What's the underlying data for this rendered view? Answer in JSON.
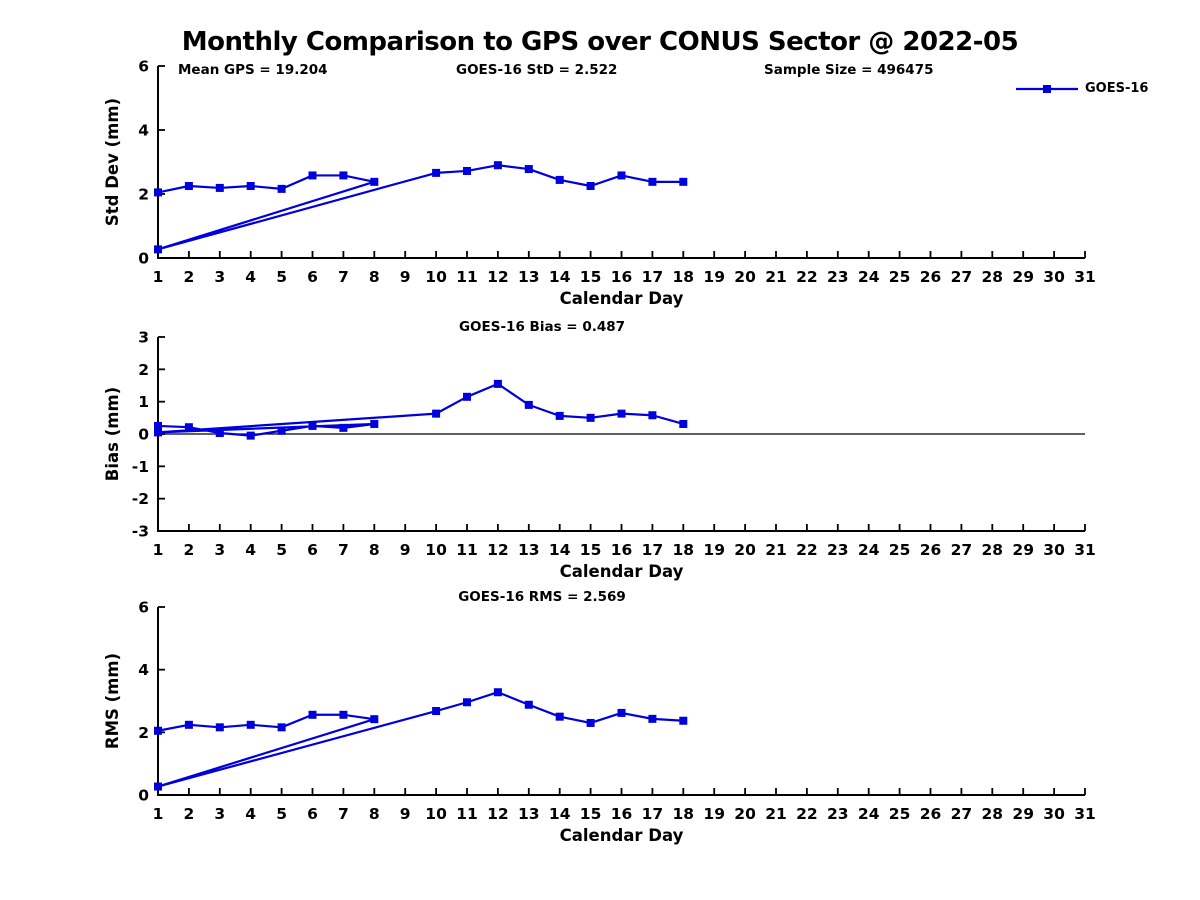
{
  "figure": {
    "title": "Monthly Comparison to GPS over CONUS Sector @ 2022-05",
    "annotations": {
      "mean_gps": "Mean GPS = 19.204",
      "goes16_std": "GOES-16 StD = 2.522",
      "sample_size": "Sample Size = 496475"
    },
    "colors": {
      "series": "#0000dd",
      "axis": "#000000",
      "background": "#ffffff"
    }
  },
  "chart_data": [
    {
      "type": "line",
      "title": "",
      "xlabel": "Calendar Day",
      "ylabel": "Std Dev (mm)",
      "xlim": [
        1,
        31
      ],
      "ylim": [
        0,
        6
      ],
      "xticks": [
        1,
        2,
        3,
        4,
        5,
        6,
        7,
        8,
        9,
        10,
        11,
        12,
        13,
        14,
        15,
        16,
        17,
        18,
        19,
        20,
        21,
        22,
        23,
        24,
        25,
        26,
        27,
        28,
        29,
        30,
        31
      ],
      "yticks": [
        0,
        2,
        4,
        6
      ],
      "grid": false,
      "zero_line": false,
      "legend": {
        "position": "upper-right",
        "labels": [
          "GOES-16"
        ]
      },
      "series": [
        {
          "name": "GOES-16",
          "color": "#0000dd",
          "marker": "square",
          "x": [
            1,
            2,
            3,
            4,
            5,
            6,
            7,
            8,
            1,
            10,
            11,
            12,
            13,
            14,
            15,
            16,
            17,
            18
          ],
          "y": [
            2.05,
            2.25,
            2.19,
            2.25,
            2.16,
            2.58,
            2.58,
            2.38,
            0.27,
            2.66,
            2.72,
            2.9,
            2.78,
            2.44,
            2.25,
            2.58,
            2.38,
            2.38
          ]
        }
      ]
    },
    {
      "type": "line",
      "title": "GOES-16 Bias = 0.487",
      "xlabel": "Calendar Day",
      "ylabel": "Bias (mm)",
      "xlim": [
        1,
        31
      ],
      "ylim": [
        -3,
        3
      ],
      "xticks": [
        1,
        2,
        3,
        4,
        5,
        6,
        7,
        8,
        9,
        10,
        11,
        12,
        13,
        14,
        15,
        16,
        17,
        18,
        19,
        20,
        21,
        22,
        23,
        24,
        25,
        26,
        27,
        28,
        29,
        30,
        31
      ],
      "yticks": [
        -3,
        -2,
        -1,
        0,
        1,
        2,
        3
      ],
      "grid": false,
      "zero_line": true,
      "series": [
        {
          "name": "GOES-16",
          "color": "#0000dd",
          "marker": "square",
          "x": [
            1,
            2,
            3,
            4,
            5,
            6,
            7,
            8,
            1,
            10,
            11,
            12,
            13,
            14,
            15,
            16,
            17,
            18
          ],
          "y": [
            0.25,
            0.21,
            0.03,
            -0.05,
            0.1,
            0.25,
            0.19,
            0.31,
            0.05,
            0.63,
            1.15,
            1.55,
            0.9,
            0.56,
            0.5,
            0.63,
            0.58,
            0.31
          ]
        }
      ]
    },
    {
      "type": "line",
      "title": "GOES-16 RMS = 2.569",
      "xlabel": "Calendar Day",
      "ylabel": "RMS (mm)",
      "xlim": [
        1,
        31
      ],
      "ylim": [
        0,
        6
      ],
      "xticks": [
        1,
        2,
        3,
        4,
        5,
        6,
        7,
        8,
        9,
        10,
        11,
        12,
        13,
        14,
        15,
        16,
        17,
        18,
        19,
        20,
        21,
        22,
        23,
        24,
        25,
        26,
        27,
        28,
        29,
        30,
        31
      ],
      "yticks": [
        0,
        2,
        4,
        6
      ],
      "grid": false,
      "zero_line": false,
      "series": [
        {
          "name": "GOES-16",
          "color": "#0000dd",
          "marker": "square",
          "x": [
            1,
            2,
            3,
            4,
            5,
            6,
            7,
            8,
            1,
            10,
            11,
            12,
            13,
            14,
            15,
            16,
            17,
            18
          ],
          "y": [
            2.05,
            2.24,
            2.16,
            2.24,
            2.16,
            2.56,
            2.56,
            2.42,
            0.27,
            2.68,
            2.96,
            3.28,
            2.88,
            2.5,
            2.3,
            2.62,
            2.43,
            2.37
          ]
        }
      ]
    }
  ]
}
